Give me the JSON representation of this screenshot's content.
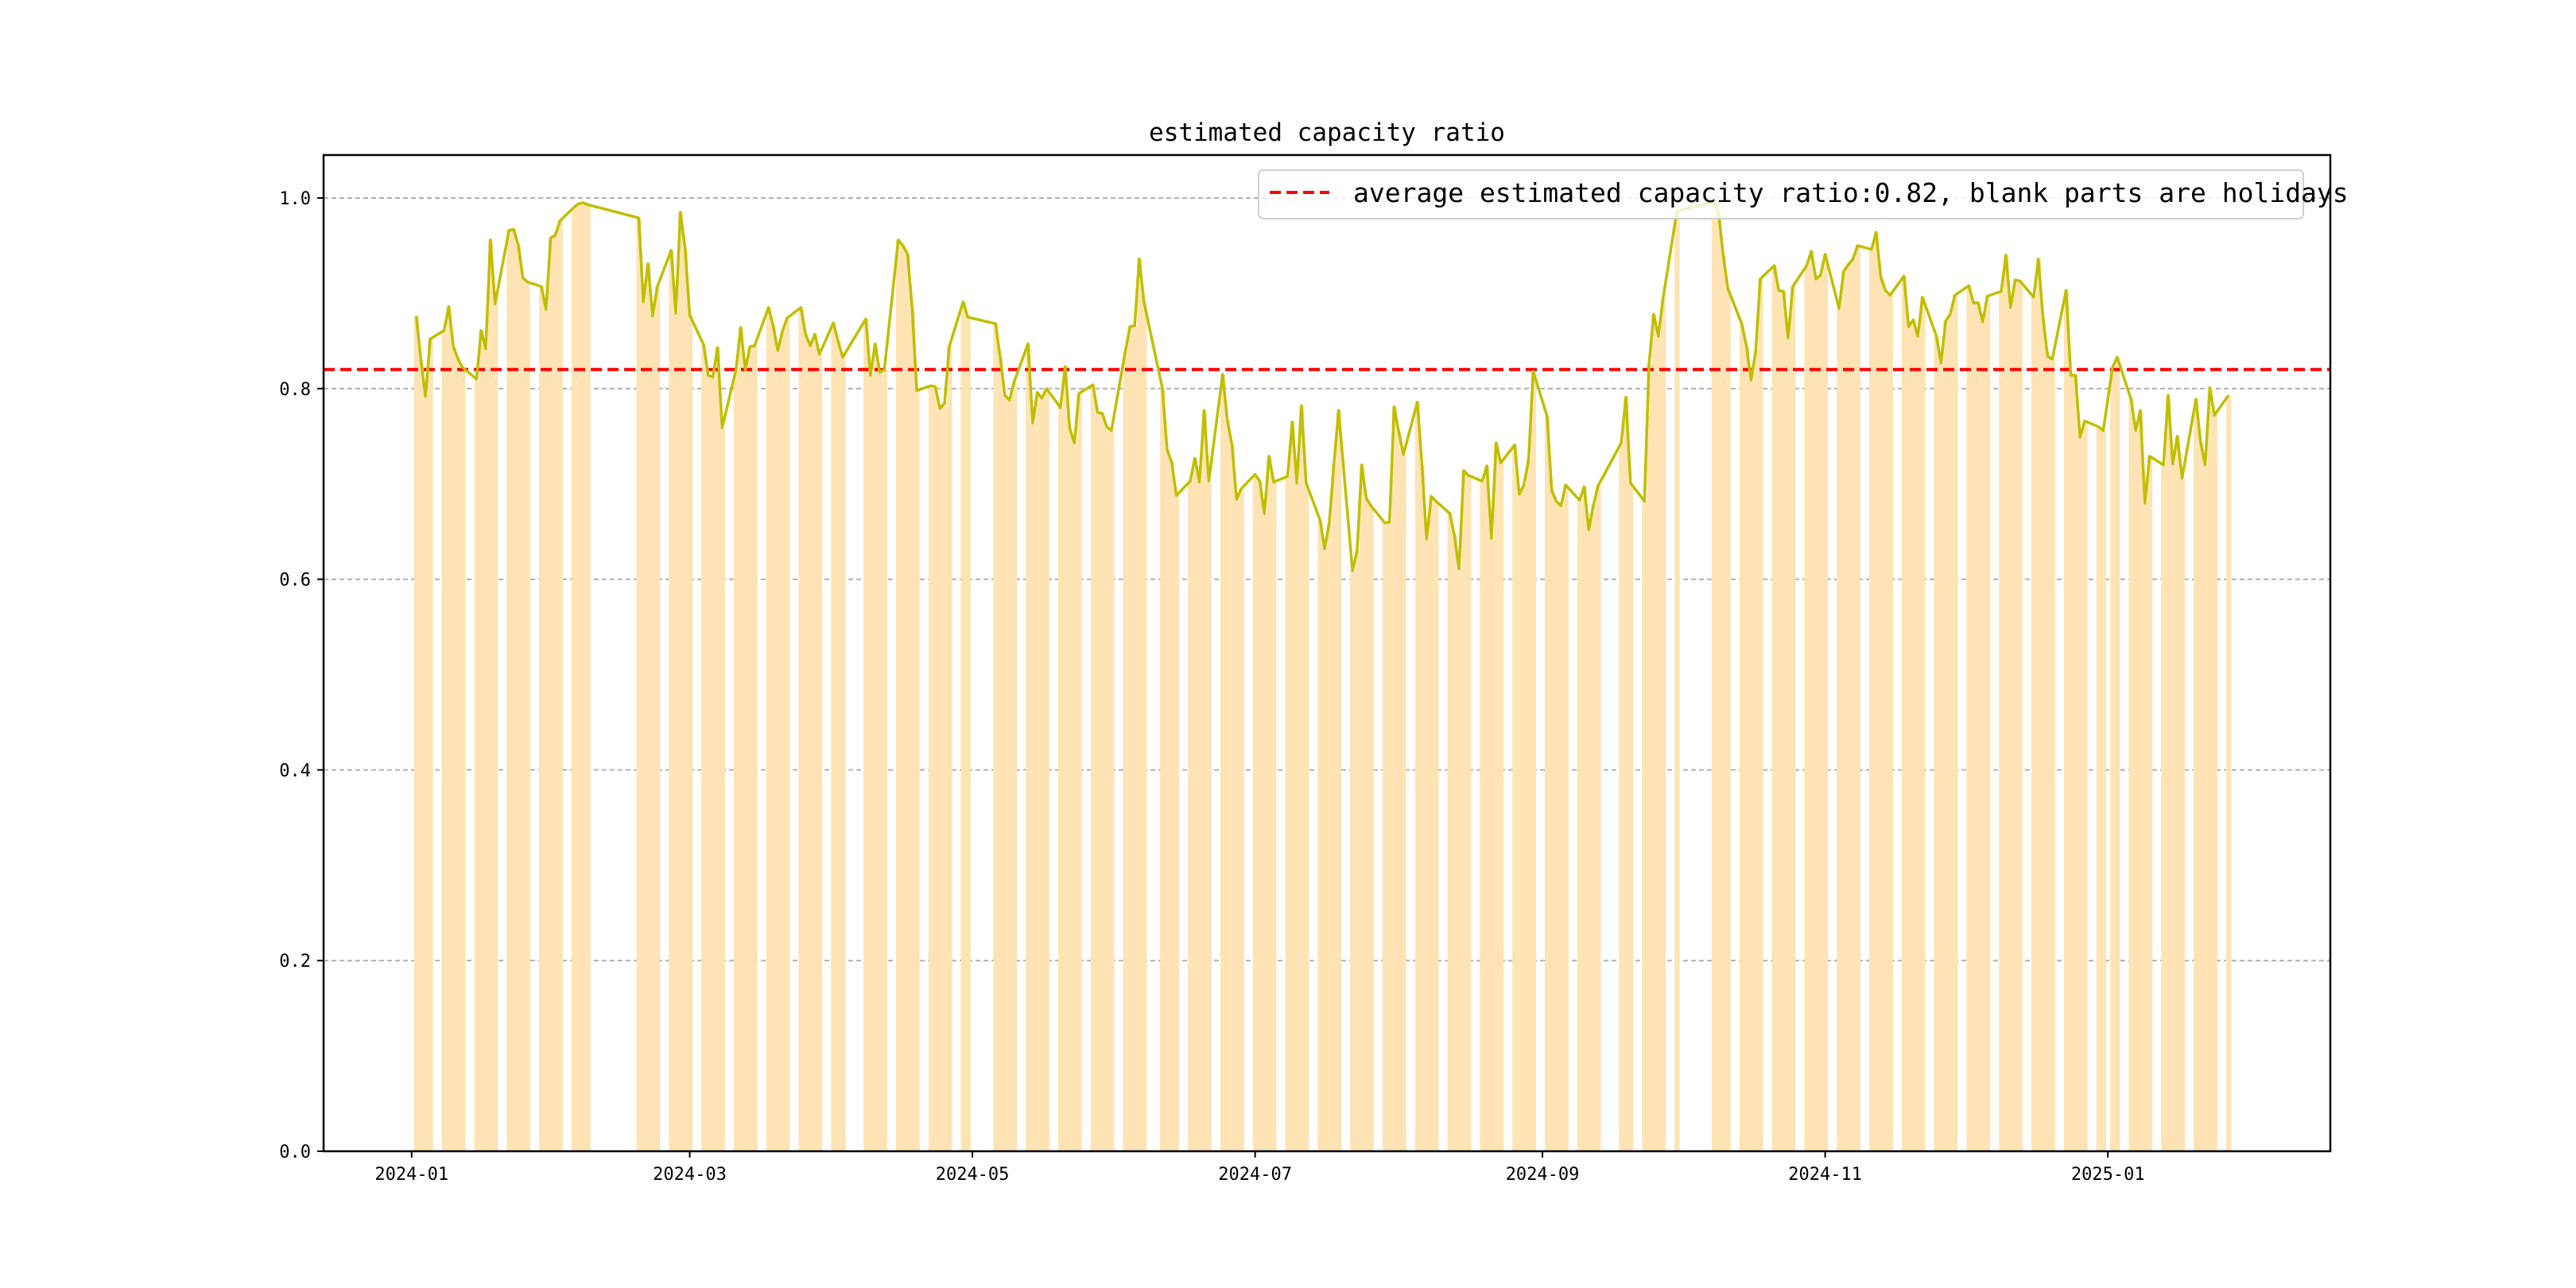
{
  "chart_data": {
    "type": "line",
    "title": "estimated capacity ratio",
    "xlabel": "",
    "ylabel": "",
    "ylim": [
      0,
      1.045
    ],
    "xlim": [
      "2023-12-13",
      "2025-02-18"
    ],
    "grid": "horizontal dashed",
    "legend_position": "top-right",
    "legend": [
      "average estimated capacity ratio:0.82, blank parts are holidays"
    ],
    "average": 0.82,
    "y_ticks": [
      "0.0",
      "0.2",
      "0.4",
      "0.6",
      "0.8",
      "1.0"
    ],
    "x_ticks": [
      {
        "date": "2024-01-01",
        "label": "2024-01"
      },
      {
        "date": "2024-03-01",
        "label": "2024-03"
      },
      {
        "date": "2024-05-01",
        "label": "2024-05"
      },
      {
        "date": "2024-07-01",
        "label": "2024-07"
      },
      {
        "date": "2024-09-01",
        "label": "2024-09"
      },
      {
        "date": "2024-11-01",
        "label": "2024-11"
      },
      {
        "date": "2025-01-01",
        "label": "2025-01"
      }
    ],
    "start_date": "2024-01-02",
    "end_date": "2025-01-27",
    "closed_dates": [
      "2024-01-01",
      "2024-02-09",
      "2024-02-12",
      "2024-02-13",
      "2024-02-14",
      "2024-02-15",
      "2024-02-16",
      "2024-04-04",
      "2024-04-05",
      "2024-05-01",
      "2024-05-02",
      "2024-05-03",
      "2024-06-10",
      "2024-09-16",
      "2024-09-17",
      "2024-10-01",
      "2024-10-02",
      "2024-10-03",
      "2024-10-04",
      "2024-10-07",
      "2025-01-01"
    ],
    "series": [
      {
        "name": "estimated capacity ratio",
        "color": "#bfbf00",
        "values": [
          0.876,
          0.83,
          0.792,
          0.852,
          0.861,
          0.886,
          0.844,
          0.831,
          0.822,
          0.81,
          0.861,
          0.842,
          0.956,
          0.889,
          0.966,
          0.967,
          0.951,
          0.916,
          0.912,
          0.907,
          0.883,
          0.958,
          0.961,
          0.976,
          0.99,
          0.994,
          0.995,
          0.993,
          0.979,
          0.891,
          0.931,
          0.876,
          0.907,
          0.945,
          0.879,
          0.985,
          0.947,
          0.877,
          0.846,
          0.814,
          0.812,
          0.843,
          0.759,
          0.82,
          0.864,
          0.82,
          0.844,
          0.845,
          0.885,
          0.866,
          0.84,
          0.86,
          0.874,
          0.885,
          0.857,
          0.845,
          0.857,
          0.836,
          0.869,
          0.85,
          0.833,
          0.873,
          0.814,
          0.847,
          0.817,
          0.82,
          0.956,
          0.95,
          0.941,
          0.884,
          0.798,
          0.803,
          0.802,
          0.779,
          0.785,
          0.844,
          0.891,
          0.875,
          0.868,
          0.833,
          0.793,
          0.788,
          0.807,
          0.847,
          0.764,
          0.796,
          0.79,
          0.8,
          0.78,
          0.823,
          0.758,
          0.743,
          0.795,
          0.804,
          0.775,
          0.774,
          0.76,
          0.756,
          0.839,
          0.865,
          0.866,
          0.936,
          0.891,
          0.8,
          0.736,
          0.723,
          0.688,
          0.703,
          0.727,
          0.702,
          0.777,
          0.703,
          0.815,
          0.767,
          0.741,
          0.684,
          0.695,
          0.71,
          0.703,
          0.669,
          0.729,
          0.702,
          0.708,
          0.765,
          0.701,
          0.782,
          0.701,
          0.662,
          0.632,
          0.659,
          0.72,
          0.777,
          0.609,
          0.63,
          0.72,
          0.685,
          0.677,
          0.659,
          0.66,
          0.781,
          0.754,
          0.731,
          0.786,
          0.72,
          0.642,
          0.687,
          0.682,
          0.669,
          0.646,
          0.611,
          0.714,
          0.709,
          0.703,
          0.719,
          0.643,
          0.743,
          0.722,
          0.741,
          0.689,
          0.699,
          0.725,
          0.818,
          0.771,
          0.693,
          0.682,
          0.677,
          0.699,
          0.683,
          0.697,
          0.652,
          0.678,
          0.698,
          0.743,
          0.791,
          0.701,
          0.682,
          0.826,
          0.878,
          0.855,
          0.894,
          0.986,
          0.996,
          0.984,
          0.94,
          0.905,
          0.868,
          0.845,
          0.809,
          0.839,
          0.915,
          0.929,
          0.903,
          0.902,
          0.853,
          0.907,
          0.929,
          0.944,
          0.915,
          0.919,
          0.941,
          0.884,
          0.923,
          0.93,
          0.936,
          0.95,
          0.946,
          0.964,
          0.917,
          0.903,
          0.898,
          0.918,
          0.865,
          0.872,
          0.855,
          0.896,
          0.855,
          0.827,
          0.871,
          0.878,
          0.898,
          0.908,
          0.89,
          0.89,
          0.87,
          0.897,
          0.902,
          0.94,
          0.885,
          0.914,
          0.913,
          0.896,
          0.936,
          0.874,
          0.834,
          0.831,
          0.903,
          0.814,
          0.814,
          0.749,
          0.766,
          0.76,
          0.756,
          0.822,
          0.833,
          0.789,
          0.756,
          0.777,
          0.68,
          0.729,
          0.72,
          0.793,
          0.721,
          0.75,
          0.706,
          0.789,
          0.744,
          0.72,
          0.801,
          0.772,
          0.793
        ]
      }
    ],
    "colors": {
      "bars": "#fee3b4",
      "line": "#bfbf00",
      "average": "#ff0000",
      "grid": "#b0b0b0"
    }
  }
}
